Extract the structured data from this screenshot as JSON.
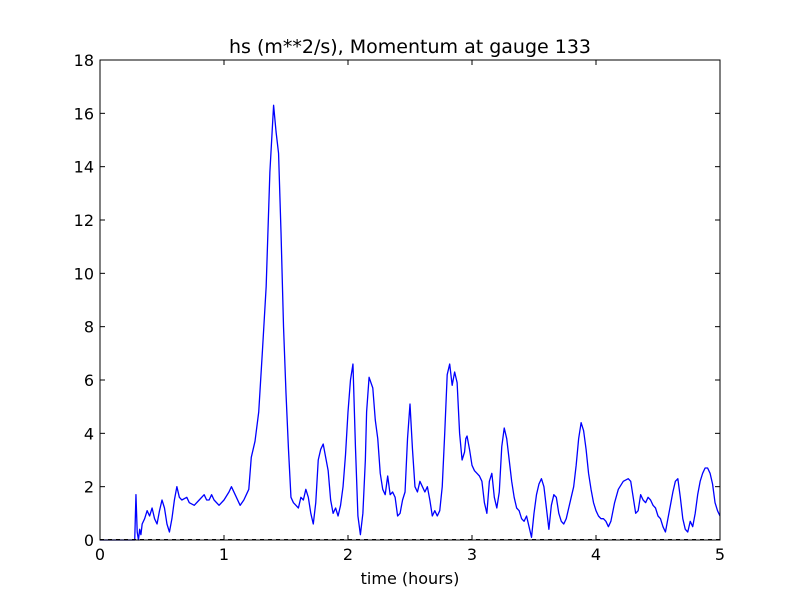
{
  "chart_data": {
    "type": "line",
    "title": "hs (m**2/s), Momentum at gauge 133",
    "xlabel": "time (hours)",
    "ylabel": "",
    "xlim": [
      0,
      5
    ],
    "ylim": [
      0,
      18
    ],
    "xticks": [
      "0",
      "1",
      "2",
      "3",
      "4",
      "5"
    ],
    "yticks": [
      "0",
      "2",
      "4",
      "6",
      "8",
      "10",
      "12",
      "14",
      "16",
      "18"
    ],
    "grid": false,
    "legend": "none",
    "colors": {
      "series": "#0000ff",
      "baseline": "#000000",
      "frame": "#000000"
    },
    "series": [
      {
        "x": [
          0.0,
          0.2,
          0.28,
          0.29,
          0.3,
          0.31,
          0.32,
          0.33,
          0.34,
          0.36,
          0.38,
          0.4,
          0.42,
          0.44,
          0.46,
          0.48,
          0.5,
          0.52,
          0.54,
          0.56,
          0.58,
          0.6,
          0.62,
          0.64,
          0.66,
          0.7,
          0.72,
          0.76,
          0.8,
          0.84,
          0.86,
          0.88,
          0.9,
          0.92,
          0.96,
          1.0,
          1.04,
          1.06,
          1.1,
          1.13,
          1.16,
          1.18,
          1.2,
          1.22,
          1.25,
          1.28,
          1.31,
          1.34,
          1.37,
          1.4,
          1.42,
          1.44,
          1.46,
          1.48,
          1.5,
          1.52,
          1.54,
          1.56,
          1.58,
          1.6,
          1.62,
          1.64,
          1.66,
          1.68,
          1.7,
          1.72,
          1.74,
          1.76,
          1.78,
          1.8,
          1.82,
          1.84,
          1.86,
          1.88,
          1.9,
          1.92,
          1.94,
          1.96,
          1.98,
          2.0,
          2.02,
          2.04,
          2.06,
          2.08,
          2.1,
          2.12,
          2.14,
          2.15,
          2.17,
          2.2,
          2.22,
          2.24,
          2.26,
          2.28,
          2.3,
          2.32,
          2.34,
          2.36,
          2.38,
          2.4,
          2.42,
          2.44,
          2.46,
          2.48,
          2.5,
          2.52,
          2.54,
          2.56,
          2.58,
          2.6,
          2.62,
          2.64,
          2.66,
          2.68,
          2.7,
          2.72,
          2.74,
          2.76,
          2.78,
          2.8,
          2.82,
          2.84,
          2.86,
          2.88,
          2.9,
          2.92,
          2.94,
          2.95,
          2.96,
          2.98,
          3.0,
          3.02,
          3.04,
          3.06,
          3.08,
          3.1,
          3.12,
          3.14,
          3.16,
          3.18,
          3.2,
          3.22,
          3.24,
          3.26,
          3.28,
          3.3,
          3.32,
          3.34,
          3.36,
          3.38,
          3.4,
          3.42,
          3.44,
          3.46,
          3.48,
          3.5,
          3.52,
          3.54,
          3.56,
          3.58,
          3.6,
          3.62,
          3.64,
          3.66,
          3.68,
          3.7,
          3.72,
          3.74,
          3.76,
          3.78,
          3.8,
          3.82,
          3.84,
          3.86,
          3.88,
          3.9,
          3.92,
          3.94,
          3.96,
          3.98,
          4.0,
          4.02,
          4.04,
          4.06,
          4.08,
          4.1,
          4.12,
          4.15,
          4.18,
          4.22,
          4.26,
          4.28,
          4.3,
          4.32,
          4.34,
          4.36,
          4.38,
          4.4,
          4.42,
          4.44,
          4.46,
          4.48,
          4.5,
          4.52,
          4.54,
          4.56,
          4.58,
          4.6,
          4.62,
          4.64,
          4.66,
          4.68,
          4.7,
          4.72,
          4.74,
          4.76,
          4.78,
          4.8,
          4.82,
          4.84,
          4.86,
          4.88,
          4.9,
          4.92,
          4.94,
          4.96,
          4.98,
          5.0
        ],
        "y": [
          0.0,
          0.0,
          0.0,
          1.7,
          0.3,
          0.0,
          0.4,
          0.2,
          0.6,
          0.8,
          1.1,
          0.9,
          1.2,
          0.8,
          0.6,
          1.1,
          1.5,
          1.2,
          0.6,
          0.3,
          0.8,
          1.5,
          2.0,
          1.6,
          1.5,
          1.6,
          1.4,
          1.3,
          1.5,
          1.7,
          1.5,
          1.5,
          1.7,
          1.5,
          1.3,
          1.5,
          1.8,
          2.0,
          1.6,
          1.3,
          1.5,
          1.7,
          1.9,
          3.1,
          3.7,
          4.8,
          7.1,
          9.5,
          13.8,
          16.3,
          15.3,
          14.5,
          11.5,
          8.0,
          5.5,
          3.4,
          1.6,
          1.4,
          1.3,
          1.2,
          1.6,
          1.5,
          1.9,
          1.6,
          1.0,
          0.6,
          1.4,
          3.0,
          3.4,
          3.6,
          3.1,
          2.6,
          1.5,
          1.0,
          1.2,
          0.9,
          1.3,
          2.0,
          3.2,
          4.8,
          6.0,
          6.6,
          3.5,
          0.9,
          0.2,
          1.0,
          3.0,
          4.8,
          6.1,
          5.7,
          4.5,
          3.8,
          2.5,
          1.9,
          1.7,
          2.4,
          1.7,
          1.8,
          1.6,
          0.9,
          1.0,
          1.5,
          1.8,
          3.8,
          5.1,
          3.4,
          2.0,
          1.8,
          2.2,
          2.0,
          1.8,
          2.0,
          1.5,
          0.9,
          1.1,
          0.9,
          1.1,
          2.0,
          4.0,
          6.2,
          6.6,
          5.8,
          6.3,
          5.9,
          4.0,
          3.0,
          3.3,
          3.8,
          3.9,
          3.4,
          2.8,
          2.6,
          2.5,
          2.4,
          2.2,
          1.4,
          1.0,
          2.2,
          2.5,
          1.6,
          1.2,
          1.8,
          3.5,
          4.2,
          3.8,
          3.0,
          2.2,
          1.6,
          1.2,
          1.1,
          0.8,
          0.7,
          0.9,
          0.5,
          0.1,
          1.0,
          1.7,
          2.1,
          2.3,
          2.0,
          1.2,
          0.4,
          1.3,
          1.7,
          1.6,
          1.0,
          0.7,
          0.6,
          0.8,
          1.2,
          1.6,
          2.0,
          2.8,
          3.8,
          4.4,
          4.1,
          3.4,
          2.5,
          1.9,
          1.4,
          1.1,
          0.9,
          0.8,
          0.8,
          0.7,
          0.5,
          0.7,
          1.4,
          1.9,
          2.2,
          2.3,
          2.2,
          1.6,
          1.0,
          1.1,
          1.7,
          1.5,
          1.4,
          1.6,
          1.5,
          1.3,
          1.2,
          0.9,
          0.8,
          0.5,
          0.3,
          0.8,
          1.3,
          1.8,
          2.2,
          2.3,
          1.6,
          0.8,
          0.4,
          0.3,
          0.7,
          0.5,
          1.0,
          1.7,
          2.2,
          2.5,
          2.7,
          2.7,
          2.5,
          2.1,
          1.4,
          1.1,
          0.9
        ]
      }
    ]
  }
}
